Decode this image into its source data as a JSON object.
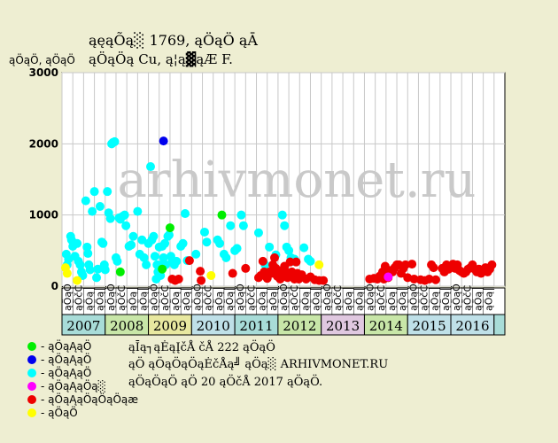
{
  "title": "ąęąÕą░ 1769, ąÖąÖ ąĀ",
  "subtitle": "ąÖąÖą Cu, ą¦ą▓ąÆ F.",
  "watermark": "arhivmonet.ru",
  "legend": [
    {
      "label": "- ąÖąĄąÖ",
      "color": "#00ee00"
    },
    {
      "label": "- ąÖąĄąÖ",
      "color": "#0000ee"
    },
    {
      "label": "- ąÖąĄąÖ",
      "color": "#00ffff"
    },
    {
      "label": "- ąÖąĄąÖą░",
      "color": "#ff00ff"
    },
    {
      "label": "- ąÖąĄąÖąÖąÖąæ",
      "color": "#ee0000"
    },
    {
      "label": "- ąÖąÖ",
      "color": "#ffff00"
    }
  ],
  "info_lines": [
    "ąĪą┐ąĖąĮčÅ čÅ 222 ąÖąÖ",
    "ąÖ ąÖąÖąÖąĖčÅą╝ ąÖą░ ARHIVMONET.RU",
    "ąÖąÖąÖ ąÖ 20 ąÖčÅ 2017 ąÖąÖ."
  ],
  "chart_data": {
    "type": "scatter",
    "ylabel": "ąÖąÖ, ąÖąÖ",
    "ylim": [
      0,
      3000
    ],
    "yticks": [
      0,
      1000,
      2000,
      3000
    ],
    "xlim": [
      2006.5,
      2016.75
    ],
    "years": [
      {
        "label": "2007",
        "from": 2006.5,
        "to": 2007.5,
        "color": "#a8dcd8"
      },
      {
        "label": "2008",
        "from": 2007.5,
        "to": 2008.5,
        "color": "#c8e6a8"
      },
      {
        "label": "2009",
        "from": 2008.5,
        "to": 2009.5,
        "color": "#e8e8a0"
      },
      {
        "label": "2010",
        "from": 2009.5,
        "to": 2010.5,
        "color": "#bfe0e8"
      },
      {
        "label": "2011",
        "from": 2010.5,
        "to": 2011.5,
        "color": "#a8dcd8"
      },
      {
        "label": "2012",
        "from": 2011.5,
        "to": 2012.5,
        "color": "#c8e6a8"
      },
      {
        "label": "2013",
        "from": 2012.5,
        "to": 2013.5,
        "color": "#e0c8e0"
      },
      {
        "label": "2014",
        "from": 2013.5,
        "to": 2014.5,
        "color": "#c8e6a8"
      },
      {
        "label": "2015",
        "from": 2014.5,
        "to": 2015.5,
        "color": "#bfe0e8"
      },
      {
        "label": "2016",
        "from": 2015.5,
        "to": 2016.5,
        "color": "#bfe0e8"
      }
    ],
    "quarter_labels": [
      "ąÖąÖ",
      "ąÖčĆ",
      "ąÖą│",
      "ąÖą║"
    ],
    "series": [
      {
        "color": "#00ffff",
        "points": [
          [
            2006.6,
            450
          ],
          [
            2006.62,
            300
          ],
          [
            2006.65,
            380
          ],
          [
            2006.7,
            700
          ],
          [
            2006.72,
            650
          ],
          [
            2006.75,
            560
          ],
          [
            2006.8,
            420
          ],
          [
            2006.85,
            600
          ],
          [
            2006.88,
            350
          ],
          [
            2006.92,
            300
          ],
          [
            2006.95,
            200
          ],
          [
            2006.98,
            150
          ],
          [
            2007.05,
            1200
          ],
          [
            2007.08,
            550
          ],
          [
            2007.1,
            460
          ],
          [
            2007.12,
            300
          ],
          [
            2007.15,
            230
          ],
          [
            2007.2,
            1050
          ],
          [
            2007.25,
            1330
          ],
          [
            2007.3,
            120
          ],
          [
            2007.33,
            240
          ],
          [
            2007.38,
            1120
          ],
          [
            2007.42,
            620
          ],
          [
            2007.45,
            600
          ],
          [
            2007.48,
            300
          ],
          [
            2007.5,
            230
          ],
          [
            2007.55,
            1330
          ],
          [
            2007.58,
            1030
          ],
          [
            2007.62,
            950
          ],
          [
            2007.65,
            2000
          ],
          [
            2007.68,
            2020
          ],
          [
            2007.72,
            2030
          ],
          [
            2007.75,
            400
          ],
          [
            2007.78,
            350
          ],
          [
            2007.82,
            960
          ],
          [
            2007.85,
            940
          ],
          [
            2007.9,
            980
          ],
          [
            2007.95,
            1000
          ],
          [
            2007.98,
            850
          ],
          [
            2008.05,
            560
          ],
          [
            2008.1,
            580
          ],
          [
            2008.15,
            700
          ],
          [
            2008.25,
            1050
          ],
          [
            2008.3,
            450
          ],
          [
            2008.35,
            650
          ],
          [
            2008.4,
            400
          ],
          [
            2008.45,
            300
          ],
          [
            2008.5,
            600
          ],
          [
            2008.55,
            1680
          ],
          [
            2008.58,
            650
          ],
          [
            2008.62,
            700
          ],
          [
            2008.65,
            420
          ],
          [
            2008.68,
            100
          ],
          [
            2008.7,
            300
          ],
          [
            2008.72,
            200
          ],
          [
            2008.75,
            550
          ],
          [
            2008.78,
            150
          ],
          [
            2008.8,
            300
          ],
          [
            2008.82,
            560
          ],
          [
            2008.85,
            400
          ],
          [
            2008.88,
            600
          ],
          [
            2008.9,
            300
          ],
          [
            2008.95,
            700
          ],
          [
            2008.98,
            720
          ],
          [
            2009.02,
            420
          ],
          [
            2009.05,
            350
          ],
          [
            2009.1,
            300
          ],
          [
            2009.15,
            350
          ],
          [
            2009.25,
            560
          ],
          [
            2009.3,
            600
          ],
          [
            2009.35,
            1020
          ],
          [
            2009.4,
            360
          ],
          [
            2009.6,
            450
          ],
          [
            2009.8,
            760
          ],
          [
            2009.85,
            620
          ],
          [
            2010.1,
            650
          ],
          [
            2010.15,
            600
          ],
          [
            2010.25,
            450
          ],
          [
            2010.3,
            400
          ],
          [
            2010.4,
            850
          ],
          [
            2010.5,
            500
          ],
          [
            2010.55,
            530
          ],
          [
            2010.65,
            1000
          ],
          [
            2010.7,
            850
          ],
          [
            2011.05,
            750
          ],
          [
            2011.2,
            300
          ],
          [
            2011.3,
            550
          ],
          [
            2011.45,
            440
          ],
          [
            2011.6,
            1000
          ],
          [
            2011.65,
            850
          ],
          [
            2011.7,
            550
          ],
          [
            2011.75,
            500
          ],
          [
            2011.8,
            400
          ],
          [
            2011.85,
            350
          ],
          [
            2011.88,
            380
          ],
          [
            2012.1,
            540
          ],
          [
            2012.2,
            380
          ],
          [
            2012.25,
            350
          ]
        ]
      },
      {
        "color": "#ee0000",
        "points": [
          [
            2009.05,
            100
          ],
          [
            2009.12,
            80
          ],
          [
            2009.2,
            100
          ],
          [
            2009.45,
            360
          ],
          [
            2009.7,
            210
          ],
          [
            2009.72,
            80
          ],
          [
            2010.45,
            180
          ],
          [
            2010.75,
            250
          ],
          [
            2011.05,
            120
          ],
          [
            2011.1,
            150
          ],
          [
            2011.15,
            350
          ],
          [
            2011.18,
            200
          ],
          [
            2011.22,
            140
          ],
          [
            2011.25,
            110
          ],
          [
            2011.3,
            200
          ],
          [
            2011.35,
            180
          ],
          [
            2011.38,
            300
          ],
          [
            2011.42,
            400
          ],
          [
            2011.45,
            250
          ],
          [
            2011.48,
            140
          ],
          [
            2011.52,
            180
          ],
          [
            2011.55,
            100
          ],
          [
            2011.58,
            160
          ],
          [
            2011.62,
            230
          ],
          [
            2011.65,
            280
          ],
          [
            2011.68,
            200
          ],
          [
            2011.72,
            120
          ],
          [
            2011.75,
            160
          ],
          [
            2011.78,
            340
          ],
          [
            2011.82,
            200
          ],
          [
            2011.85,
            150
          ],
          [
            2011.88,
            100
          ],
          [
            2011.92,
            340
          ],
          [
            2011.95,
            180
          ],
          [
            2011.98,
            100
          ],
          [
            2012.05,
            160
          ],
          [
            2012.15,
            100
          ],
          [
            2012.25,
            130
          ],
          [
            2012.35,
            90
          ],
          [
            2012.45,
            80
          ],
          [
            2012.55,
            80
          ],
          [
            2013.62,
            100
          ],
          [
            2013.72,
            110
          ],
          [
            2013.8,
            100
          ],
          [
            2013.85,
            140
          ],
          [
            2013.9,
            160
          ],
          [
            2013.92,
            200
          ],
          [
            2013.95,
            100
          ],
          [
            2013.98,
            280
          ],
          [
            2014.05,
            120
          ],
          [
            2014.1,
            220
          ],
          [
            2014.15,
            200
          ],
          [
            2014.2,
            260
          ],
          [
            2014.25,
            300
          ],
          [
            2014.3,
            300
          ],
          [
            2014.35,
            180
          ],
          [
            2014.4,
            250
          ],
          [
            2014.45,
            300
          ],
          [
            2014.5,
            120
          ],
          [
            2014.6,
            310
          ],
          [
            2014.65,
            100
          ],
          [
            2014.8,
            90
          ],
          [
            2014.9,
            80
          ],
          [
            2015.0,
            100
          ],
          [
            2015.05,
            300
          ],
          [
            2015.1,
            260
          ],
          [
            2015.15,
            90
          ],
          [
            2015.3,
            250
          ],
          [
            2015.35,
            200
          ],
          [
            2015.4,
            300
          ],
          [
            2015.45,
            240
          ],
          [
            2015.5,
            280
          ],
          [
            2015.55,
            310
          ],
          [
            2015.6,
            250
          ],
          [
            2015.65,
            300
          ],
          [
            2015.7,
            220
          ],
          [
            2015.75,
            200
          ],
          [
            2015.8,
            180
          ],
          [
            2015.85,
            200
          ],
          [
            2015.9,
            240
          ],
          [
            2015.95,
            260
          ],
          [
            2016.0,
            300
          ],
          [
            2016.05,
            240
          ],
          [
            2016.1,
            200
          ],
          [
            2016.15,
            240
          ],
          [
            2016.2,
            180
          ],
          [
            2016.25,
            220
          ],
          [
            2016.3,
            260
          ],
          [
            2016.35,
            200
          ],
          [
            2016.4,
            240
          ],
          [
            2016.45,
            300
          ]
        ]
      },
      {
        "color": "#00ee00",
        "points": [
          [
            2007.85,
            200
          ],
          [
            2008.82,
            240
          ],
          [
            2009.0,
            820
          ],
          [
            2010.2,
            1000
          ]
        ]
      },
      {
        "color": "#0000ee",
        "points": [
          [
            2008.85,
            2040
          ]
        ]
      },
      {
        "color": "#ff00ff",
        "points": [
          [
            2014.05,
            130
          ]
        ]
      },
      {
        "color": "#ffff00",
        "points": [
          [
            2006.58,
            260
          ],
          [
            2006.62,
            180
          ],
          [
            2006.85,
            80
          ],
          [
            2009.95,
            150
          ],
          [
            2012.45,
            300
          ]
        ]
      }
    ]
  }
}
